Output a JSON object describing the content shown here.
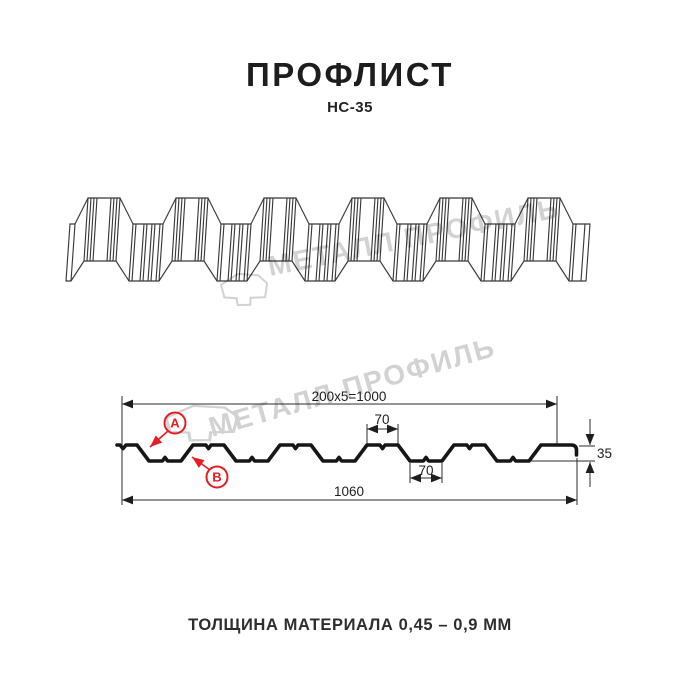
{
  "header": {
    "title": "ПРОФЛИСТ",
    "subtitle": "НС-35"
  },
  "watermark": {
    "text": "МЕТАЛЛ ПРОФИЛЬ"
  },
  "diagram": {
    "dimensions": {
      "pitch_total": "200x5=1000",
      "top_flange": "70",
      "bottom_flange": "70",
      "height": "35",
      "overall_width": "1060"
    },
    "labels": {
      "a": "A",
      "b": "B"
    }
  },
  "footer": {
    "material_thickness": "ТОЛЩИНА МАТЕРИАЛА 0,45 – 0,9 ММ"
  },
  "colors": {
    "accent_red": "#e31e24",
    "line": "#2b2b2b",
    "watermark_gray": "#c6c6c6"
  }
}
